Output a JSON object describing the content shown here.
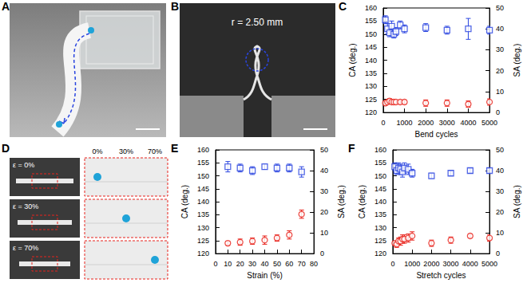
{
  "panels": [
    {
      "label": "A"
    },
    {
      "label": "B",
      "annotation": "r = 2.50 mm"
    },
    {
      "label": "D",
      "row_labels": [
        "ε = 0%",
        "ε = 30%",
        "ε = 70%"
      ],
      "column_labels": [
        "0%",
        "30%",
        "70%"
      ]
    }
  ],
  "chart_data": [
    {
      "panel": "C",
      "type": "scatter",
      "xlabel": "Bend cycles",
      "ylabel": "CA (deg.)",
      "y2label": "SA (deg.)",
      "xlim": [
        0,
        5000
      ],
      "xticks": [
        0,
        1000,
        2000,
        3000,
        4000,
        5000
      ],
      "ylim": [
        120,
        160
      ],
      "yticks": [
        120,
        125,
        130,
        135,
        140,
        145,
        150,
        155,
        160
      ],
      "y2lim": [
        0,
        50
      ],
      "y2ticks": [
        0,
        10,
        20,
        30,
        40,
        50
      ],
      "grid": false,
      "x": [
        100,
        200,
        300,
        400,
        500,
        600,
        800,
        1000,
        2000,
        3000,
        4000,
        5000
      ],
      "series": [
        {
          "color": "#2a45e0",
          "marker": "square",
          "values": [
            155.5,
            152,
            150.5,
            153,
            150,
            151,
            153.5,
            152,
            152.5,
            151.5,
            152,
            151.5
          ],
          "errors": [
            1.5,
            2,
            1.5,
            2,
            1.5,
            1.5,
            1.5,
            1.5,
            1.5,
            1.5,
            4,
            1.5
          ]
        },
        {
          "color": "#e8231c",
          "marker": "circle",
          "axis": "y2",
          "values": [
            4.5,
            5,
            5.5,
            5,
            5,
            5,
            5,
            5,
            4.5,
            4.5,
            4,
            5
          ],
          "errors": [
            1,
            1,
            1,
            1,
            1,
            1,
            1,
            1,
            1.5,
            1.5,
            1.5,
            1.5
          ]
        }
      ]
    },
    {
      "panel": "E",
      "type": "scatter",
      "xlabel": "Strain (%)",
      "ylabel": "CA (deg.)",
      "y2label": "SA (deg.)",
      "xlim": [
        0,
        80
      ],
      "xticks": [
        0,
        10,
        20,
        30,
        40,
        50,
        60,
        70,
        80
      ],
      "ylim": [
        120,
        160
      ],
      "yticks": [
        120,
        125,
        130,
        135,
        140,
        145,
        150,
        155,
        160
      ],
      "y2lim": [
        0,
        50
      ],
      "y2ticks": [
        0,
        10,
        20,
        30,
        40,
        50
      ],
      "grid": false,
      "x": [
        10,
        20,
        30,
        40,
        50,
        60,
        70
      ],
      "series": [
        {
          "color": "#2a45e0",
          "marker": "square",
          "values": [
            153.5,
            153,
            152,
            153.5,
            153,
            153,
            151.5
          ],
          "errors": [
            2,
            1.5,
            1.5,
            1,
            1.5,
            1.5,
            2
          ]
        },
        {
          "color": "#e8231c",
          "marker": "circle",
          "axis": "y2",
          "values": [
            5,
            5.5,
            6,
            6.5,
            7.5,
            9,
            19
          ],
          "errors": [
            1,
            1.5,
            1.5,
            2,
            1.5,
            2,
            2
          ]
        }
      ]
    },
    {
      "panel": "F",
      "type": "scatter",
      "xlabel": "Stretch cycles",
      "ylabel": "CA (deg.)",
      "y2label": "SA (deg.)",
      "xlim": [
        0,
        5000
      ],
      "xticks": [
        0,
        1000,
        2000,
        3000,
        4000,
        5000
      ],
      "ylim": [
        120,
        160
      ],
      "yticks": [
        120,
        125,
        130,
        135,
        140,
        145,
        150,
        155,
        160
      ],
      "y2lim": [
        0,
        50
      ],
      "y2ticks": [
        0,
        10,
        20,
        30,
        40,
        50
      ],
      "grid": false,
      "x": [
        100,
        200,
        300,
        400,
        500,
        600,
        800,
        1000,
        2000,
        3000,
        4000,
        5000
      ],
      "series": [
        {
          "color": "#2a45e0",
          "marker": "square",
          "values": [
            153.5,
            152,
            153,
            152.5,
            151.5,
            153,
            152.5,
            151,
            150,
            151,
            152,
            152
          ],
          "errors": [
            1.5,
            1.5,
            2,
            2,
            2,
            2,
            2,
            1.5,
            1,
            1,
            1,
            1
          ]
        },
        {
          "color": "#e8231c",
          "marker": "circle",
          "axis": "y2",
          "values": [
            5,
            4.5,
            6,
            6,
            7,
            7,
            7.5,
            8.5,
            5,
            6.5,
            8.5,
            7.5
          ],
          "errors": [
            1,
            1.5,
            1.5,
            2,
            2,
            2,
            2,
            2,
            1.5,
            1.5,
            1,
            1.5
          ]
        }
      ]
    }
  ]
}
